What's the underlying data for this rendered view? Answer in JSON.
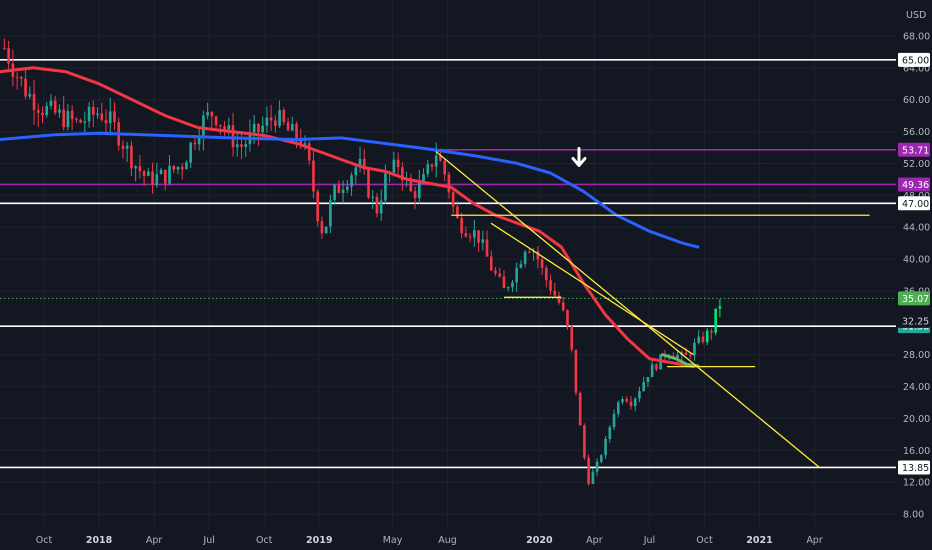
{
  "chart_data": {
    "type": "candlestick",
    "currency": "USD",
    "ylim": [
      6,
      70
    ],
    "y_ticks": [
      "68.00",
      "64.00",
      "60.00",
      "56.00",
      "52.00",
      "48.00",
      "44.00",
      "40.00",
      "36.00",
      "32.00",
      "28.00",
      "24.00",
      "20.00",
      "16.00",
      "12.00",
      "8.00"
    ],
    "x_ticks": [
      {
        "label": "Oct",
        "t": 2017.75,
        "year": false
      },
      {
        "label": "2018",
        "t": 2018.0,
        "year": true
      },
      {
        "label": "Apr",
        "t": 2018.25,
        "year": false
      },
      {
        "label": "Jul",
        "t": 2018.5,
        "year": false
      },
      {
        "label": "Oct",
        "t": 2018.75,
        "year": false
      },
      {
        "label": "2019",
        "t": 2019.0,
        "year": true
      },
      {
        "label": "May",
        "t": 2019.333,
        "year": false
      },
      {
        "label": "Aug",
        "t": 2019.583,
        "year": false
      },
      {
        "label": "2020",
        "t": 2020.0,
        "year": true
      },
      {
        "label": "Apr",
        "t": 2020.25,
        "year": false
      },
      {
        "label": "Jul",
        "t": 2020.5,
        "year": false
      },
      {
        "label": "Oct",
        "t": 2020.75,
        "year": false
      },
      {
        "label": "2021",
        "t": 2021.0,
        "year": true
      },
      {
        "label": "Apr",
        "t": 2021.25,
        "year": false
      }
    ],
    "price_path": [
      [
        2017.57,
        66.5
      ],
      [
        2017.62,
        63.5
      ],
      [
        2017.67,
        61
      ],
      [
        2017.74,
        59
      ],
      [
        2017.82,
        58
      ],
      [
        2017.9,
        57
      ],
      [
        2018.0,
        58.5
      ],
      [
        2018.06,
        57
      ],
      [
        2018.1,
        55
      ],
      [
        2018.16,
        52
      ],
      [
        2018.22,
        50
      ],
      [
        2018.3,
        50.5
      ],
      [
        2018.38,
        52
      ],
      [
        2018.46,
        57
      ],
      [
        2018.52,
        58.5
      ],
      [
        2018.58,
        56
      ],
      [
        2018.64,
        54
      ],
      [
        2018.72,
        56
      ],
      [
        2018.8,
        58
      ],
      [
        2018.86,
        56
      ],
      [
        2018.92,
        55
      ],
      [
        2018.96,
        51
      ],
      [
        2018.99,
        46
      ],
      [
        2019.02,
        43
      ],
      [
        2019.06,
        48
      ],
      [
        2019.12,
        50
      ],
      [
        2019.18,
        52
      ],
      [
        2019.22,
        49
      ],
      [
        2019.26,
        46
      ],
      [
        2019.3,
        50
      ],
      [
        2019.36,
        52
      ],
      [
        2019.42,
        48
      ],
      [
        2019.48,
        50
      ],
      [
        2019.53,
        53.5
      ],
      [
        2019.58,
        50
      ],
      [
        2019.62,
        45
      ],
      [
        2019.66,
        44
      ],
      [
        2019.72,
        43
      ],
      [
        2019.78,
        39
      ],
      [
        2019.84,
        36
      ],
      [
        2019.9,
        39
      ],
      [
        2019.94,
        42
      ],
      [
        2019.98,
        41
      ],
      [
        2020.02,
        38
      ],
      [
        2020.06,
        36
      ],
      [
        2020.1,
        34
      ],
      [
        2020.14,
        30
      ],
      [
        2020.18,
        20
      ],
      [
        2020.22,
        12
      ],
      [
        2020.26,
        14
      ],
      [
        2020.3,
        17
      ],
      [
        2020.34,
        21
      ],
      [
        2020.38,
        23
      ],
      [
        2020.42,
        22
      ],
      [
        2020.46,
        24
      ],
      [
        2020.5,
        26
      ],
      [
        2020.54,
        27
      ],
      [
        2020.58,
        28.5
      ],
      [
        2020.62,
        28
      ],
      [
        2020.66,
        27.5
      ],
      [
        2020.7,
        29
      ],
      [
        2020.74,
        30
      ],
      [
        2020.78,
        31
      ],
      [
        2020.8,
        33
      ],
      [
        2020.83,
        35.1
      ]
    ],
    "series": [
      {
        "name": "",
        "color": "#f23645",
        "values": [
          [
            2017.55,
            63.5
          ],
          [
            2017.7,
            64
          ],
          [
            2017.85,
            63.5
          ],
          [
            2018.0,
            62
          ],
          [
            2018.15,
            60
          ],
          [
            2018.3,
            58
          ],
          [
            2018.45,
            56.5
          ],
          [
            2018.6,
            56
          ],
          [
            2018.75,
            55.5
          ],
          [
            2018.9,
            54.5
          ],
          [
            2019.0,
            53.5
          ],
          [
            2019.1,
            52.5
          ],
          [
            2019.2,
            51.5
          ],
          [
            2019.3,
            51
          ],
          [
            2019.4,
            50
          ],
          [
            2019.5,
            49.5
          ],
          [
            2019.6,
            49
          ],
          [
            2019.7,
            47
          ],
          [
            2019.8,
            45.5
          ],
          [
            2019.9,
            44.5
          ],
          [
            2020.0,
            43.5
          ],
          [
            2020.1,
            41.5
          ],
          [
            2020.2,
            37
          ],
          [
            2020.3,
            33
          ],
          [
            2020.4,
            30
          ],
          [
            2020.5,
            27.5
          ],
          [
            2020.6,
            27
          ],
          [
            2020.7,
            26.5
          ]
        ]
      },
      {
        "name": "",
        "color": "#2962ff",
        "values": [
          [
            2017.55,
            55
          ],
          [
            2017.8,
            55.6
          ],
          [
            2018.0,
            55.8
          ],
          [
            2018.3,
            55.5
          ],
          [
            2018.6,
            55.2
          ],
          [
            2018.9,
            55
          ],
          [
            2019.1,
            55.2
          ],
          [
            2019.3,
            54.5
          ],
          [
            2019.5,
            53.8
          ],
          [
            2019.7,
            53
          ],
          [
            2019.9,
            52
          ],
          [
            2020.05,
            50.8
          ],
          [
            2020.2,
            48.5
          ],
          [
            2020.35,
            45.5
          ],
          [
            2020.5,
            43.5
          ],
          [
            2020.65,
            42
          ],
          [
            2020.72,
            41.5
          ]
        ]
      },
      {
        "name": "",
        "color": "#66bb6a",
        "values": [
          [
            2020.56,
            28
          ],
          [
            2020.62,
            27.5
          ],
          [
            2020.67,
            26.8
          ],
          [
            2020.72,
            26.6
          ]
        ]
      }
    ],
    "horizontal_lines": [
      {
        "value": 65.0,
        "color": "#ffffff",
        "label": "65.00",
        "badge_fill": "#ffffff",
        "badge_text": "#131722",
        "t_start": 2017.55
      },
      {
        "value": 53.71,
        "color": "#9c27b0",
        "label": "53.71",
        "badge_fill": "#9c27b0",
        "badge_text": "#ffffff",
        "t_start": 2019.5
      },
      {
        "value": 49.36,
        "color": "#9c27b0",
        "label": "49.36",
        "badge_fill": "#9c27b0",
        "badge_text": "#ffffff",
        "t_start": 2017.55
      },
      {
        "value": 47.0,
        "color": "#ffffff",
        "label": "47.00",
        "badge_fill": "#ffffff",
        "badge_text": "#131722",
        "t_start": 2017.55
      },
      {
        "value": 31.58,
        "color": "#ffffff",
        "label": "31.58",
        "badge_fill": "#26a69a",
        "badge_text": "#ffffff",
        "t_start": 2017.55
      },
      {
        "value": 13.85,
        "color": "#ffffff",
        "label": "13.85",
        "badge_fill": "#ffffff",
        "badge_text": "#131722",
        "t_start": 2017.55
      }
    ],
    "price_line": {
      "value": 35.07,
      "label": "35.07",
      "color": "#4caf50",
      "badge_fill": "#4caf50"
    },
    "price_badge_extra": {
      "value": 32.25,
      "label": "32.25"
    },
    "trendlines": [
      {
        "color": "#ffeb3b",
        "from": [
          2019.53,
          53.5
        ],
        "to": [
          2021.27,
          13.9
        ]
      },
      {
        "color": "#ffeb3b",
        "from": [
          2019.6,
          45.5
        ],
        "to": [
          2021.5,
          45.5
        ]
      },
      {
        "color": "#ffeb3b",
        "from": [
          2019.84,
          35.2
        ],
        "to": [
          2020.1,
          35.2
        ]
      },
      {
        "color": "#ffeb3b",
        "from": [
          2020.58,
          26.5
        ],
        "to": [
          2020.98,
          26.5
        ]
      },
      {
        "color": "#ffeb3b",
        "from": [
          2019.78,
          44.5
        ],
        "to": [
          2020.7,
          28.0
        ]
      }
    ],
    "arrow_annotation": {
      "t": 2020.18,
      "y": 52.5,
      "direction": "down",
      "color": "#ffffff"
    },
    "colors": {
      "bull": "#26a69a",
      "bull_bright": "#00e676",
      "bear": "#f23645",
      "background": "#131722",
      "axis_text": "#b2b5be"
    }
  }
}
